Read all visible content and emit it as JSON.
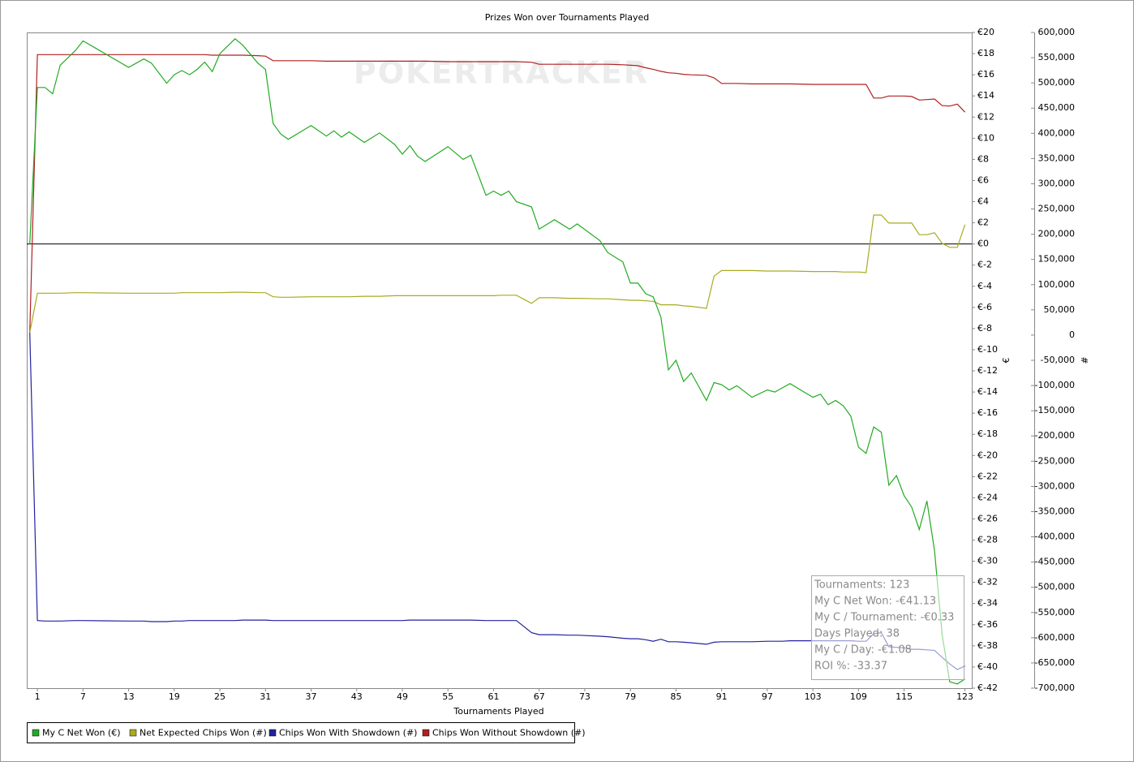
{
  "chart_data": {
    "type": "line",
    "title": "Prizes Won over Tournaments Played",
    "xlabel": "Tournaments Played",
    "ylabel": "€",
    "y2label": "#",
    "watermark": "POKERTRACKER",
    "legend": "bottom-left",
    "zero_line": true,
    "x": [
      0,
      1,
      2,
      3,
      4,
      6,
      7,
      13,
      15,
      16,
      18,
      19,
      20,
      21,
      22,
      23,
      24,
      25,
      27,
      28,
      30,
      31,
      32,
      33,
      34,
      37,
      39,
      40,
      41,
      42,
      44,
      46,
      48,
      49,
      50,
      51,
      52,
      55,
      57,
      58,
      60,
      61,
      62,
      63,
      64,
      66,
      67,
      69,
      71,
      72,
      75,
      76,
      78,
      79,
      80,
      81,
      82,
      83,
      84,
      85,
      86,
      87,
      89,
      90,
      91,
      92,
      93,
      95,
      97,
      98,
      99,
      100,
      103,
      104,
      105,
      106,
      107,
      108,
      109,
      110,
      111,
      112,
      113,
      114,
      115,
      116,
      117,
      118,
      119,
      120,
      121,
      122,
      123
    ],
    "xlim": [
      -0.4,
      123.9
    ],
    "xticks": [
      1,
      7,
      13,
      19,
      25,
      31,
      37,
      43,
      49,
      55,
      61,
      67,
      73,
      79,
      85,
      91,
      97,
      103,
      109,
      115,
      123
    ],
    "ylim": [
      -42,
      20
    ],
    "yticks": [
      {
        "value": 20,
        "label": "€20"
      },
      {
        "value": 18,
        "label": "€18"
      },
      {
        "value": 16,
        "label": "€16"
      },
      {
        "value": 14,
        "label": "€14"
      },
      {
        "value": 12,
        "label": "€12"
      },
      {
        "value": 10,
        "label": "€10"
      },
      {
        "value": 8,
        "label": "€8"
      },
      {
        "value": 6,
        "label": "€6"
      },
      {
        "value": 4,
        "label": "€4"
      },
      {
        "value": 2,
        "label": "€2"
      },
      {
        "value": 0,
        "label": "€0"
      },
      {
        "value": -2,
        "label": "€-2"
      },
      {
        "value": -4,
        "label": "€-4"
      },
      {
        "value": -6,
        "label": "€-6"
      },
      {
        "value": -8,
        "label": "€-8"
      },
      {
        "value": -10,
        "label": "€-10"
      },
      {
        "value": -12,
        "label": "€-12"
      },
      {
        "value": -14,
        "label": "€-14"
      },
      {
        "value": -16,
        "label": "€-16"
      },
      {
        "value": -18,
        "label": "€-18"
      },
      {
        "value": -20,
        "label": "€-20"
      },
      {
        "value": -22,
        "label": "€-22"
      },
      {
        "value": -24,
        "label": "€-24"
      },
      {
        "value": -26,
        "label": "€-26"
      },
      {
        "value": -28,
        "label": "€-28"
      },
      {
        "value": -30,
        "label": "€-30"
      },
      {
        "value": -32,
        "label": "€-32"
      },
      {
        "value": -34,
        "label": "€-34"
      },
      {
        "value": -36,
        "label": "€-36"
      },
      {
        "value": -38,
        "label": "€-38"
      },
      {
        "value": -40,
        "label": "€-40"
      },
      {
        "value": -42,
        "label": "€-42"
      }
    ],
    "y2lim": [
      -700000,
      600000
    ],
    "y2ticks": [
      {
        "value": 600000,
        "label": "600,000"
      },
      {
        "value": 550000,
        "label": "550,000"
      },
      {
        "value": 500000,
        "label": "500,000"
      },
      {
        "value": 450000,
        "label": "450,000"
      },
      {
        "value": 400000,
        "label": "400,000"
      },
      {
        "value": 350000,
        "label": "350,000"
      },
      {
        "value": 300000,
        "label": "300,000"
      },
      {
        "value": 250000,
        "label": "250,000"
      },
      {
        "value": 200000,
        "label": "200,000"
      },
      {
        "value": 150000,
        "label": "150,000"
      },
      {
        "value": 100000,
        "label": "100,000"
      },
      {
        "value": 50000,
        "label": "50,000"
      },
      0,
      {
        "value": -50000,
        "label": "-50,000"
      },
      {
        "value": -100000,
        "label": "-100,000"
      },
      {
        "value": -150000,
        "label": "-150,000"
      },
      {
        "value": -200000,
        "label": "-200,000"
      },
      {
        "value": -250000,
        "label": "-250,000"
      },
      {
        "value": -300000,
        "label": "-300,000"
      },
      {
        "value": -350000,
        "label": "-350,000"
      },
      {
        "value": -400000,
        "label": "-400,000"
      },
      {
        "value": -450000,
        "label": "-450,000"
      },
      {
        "value": -500000,
        "label": "-500,000"
      },
      {
        "value": -550000,
        "label": "-550,000"
      },
      {
        "value": -600000,
        "label": "-600,000"
      },
      {
        "value": -650000,
        "label": "-650,000"
      },
      {
        "value": -700000,
        "label": "-700,000"
      }
    ],
    "series": [
      {
        "name": "My C Net Won (€)",
        "color": "#22aa22",
        "axis": "y",
        "values": [
          0,
          14.8,
          14.8,
          14.2,
          16.9,
          18.3,
          19.2,
          16.7,
          17.5,
          17.1,
          15.2,
          16,
          16.4,
          16,
          16.5,
          17.2,
          16.3,
          18,
          19.4,
          18.8,
          17.1,
          16.5,
          11.4,
          10.4,
          9.9,
          11.2,
          10.2,
          10.7,
          10.1,
          10.6,
          9.6,
          10.5,
          9.4,
          8.5,
          9.3,
          8.3,
          7.8,
          9.2,
          8,
          8.4,
          4.6,
          5,
          4.6,
          5,
          4,
          3.5,
          1.4,
          2.3,
          1.4,
          1.9,
          0.3,
          -0.8,
          -1.7,
          -3.7,
          -3.7,
          -4.7,
          -5,
          -6.9,
          -11.9,
          -11,
          -13,
          -12.2,
          -14.8,
          -13.1,
          -13.3,
          -13.8,
          -13.4,
          -14.5,
          -13.8,
          -14,
          -13.6,
          -13.2,
          -14.5,
          -14.2,
          -15.2,
          -14.8,
          -15.3,
          -16.3,
          -19.2,
          -19.8,
          -17.3,
          -17.8,
          -22.8,
          -21.9,
          -23.8,
          -24.9,
          -27,
          -24.3,
          -29,
          -36.9,
          -41.4,
          -41.6,
          -41.13
        ]
      },
      {
        "name": "Net Expected Chips Won (#)",
        "color": "#aaaa22",
        "axis": "y2",
        "values": [
          5000,
          83000,
          83000,
          83000,
          83000,
          84000,
          84000,
          83000,
          83000,
          83000,
          83000,
          83000,
          84000,
          84000,
          84000,
          84000,
          84000,
          84000,
          85000,
          85000,
          84000,
          84000,
          76000,
          75000,
          75000,
          76000,
          76000,
          76000,
          76000,
          76000,
          77000,
          77000,
          78000,
          78000,
          78000,
          78000,
          78000,
          78000,
          78000,
          78000,
          78000,
          78000,
          79000,
          79000,
          79000,
          63000,
          74000,
          74000,
          73000,
          73000,
          72000,
          72000,
          70000,
          69000,
          69000,
          68000,
          67000,
          60000,
          60000,
          60000,
          58000,
          57000,
          53000,
          117000,
          128000,
          128000,
          128000,
          128000,
          127000,
          127000,
          127000,
          127000,
          126000,
          126000,
          126000,
          126000,
          125000,
          125000,
          125000,
          124000,
          238000,
          238000,
          222000,
          222000,
          222000,
          222000,
          199000,
          199000,
          203000,
          182000,
          174000,
          174000,
          219000
        ]
      },
      {
        "name": "Chips Won With Showdown (#)",
        "color": "#2222a0",
        "axis": "y2",
        "values": [
          5000,
          -566000,
          -567000,
          -567000,
          -567000,
          -566000,
          -566000,
          -567000,
          -567000,
          -568000,
          -568000,
          -567000,
          -567000,
          -566000,
          -566000,
          -566000,
          -566000,
          -566000,
          -566000,
          -565000,
          -565000,
          -565000,
          -566000,
          -566000,
          -566000,
          -566000,
          -566000,
          -566000,
          -566000,
          -566000,
          -566000,
          -566000,
          -566000,
          -566000,
          -565000,
          -565000,
          -565000,
          -565000,
          -565000,
          -565000,
          -566000,
          -566000,
          -566000,
          -566000,
          -566000,
          -590000,
          -594000,
          -594000,
          -595000,
          -595000,
          -597000,
          -598000,
          -601000,
          -602000,
          -602000,
          -604000,
          -607000,
          -603000,
          -608000,
          -608000,
          -609000,
          -610000,
          -613000,
          -609000,
          -608000,
          -608000,
          -608000,
          -608000,
          -607000,
          -607000,
          -607000,
          -606000,
          -606000,
          -606000,
          -606000,
          -606000,
          -606000,
          -606000,
          -607000,
          -607000,
          -592000,
          -590000,
          -618000,
          -619000,
          -620000,
          -623000,
          -623000,
          -624000,
          -625000,
          -639000,
          -652000,
          -663000,
          -656000
        ]
      },
      {
        "name": "Chips Won Without Showdown (#)",
        "color": "#b02020",
        "axis": "y2",
        "values": [
          5000,
          556000,
          556000,
          556000,
          556000,
          556000,
          556000,
          556000,
          556000,
          556000,
          556000,
          556000,
          556000,
          556000,
          556000,
          556000,
          555000,
          555000,
          555000,
          555000,
          554000,
          553000,
          544000,
          544000,
          544000,
          544000,
          543000,
          543000,
          543000,
          543000,
          543000,
          543000,
          543000,
          543000,
          543000,
          543000,
          543000,
          542000,
          542000,
          542000,
          542000,
          542000,
          542000,
          542000,
          542000,
          541000,
          537000,
          537000,
          537000,
          537000,
          537000,
          537000,
          536000,
          535000,
          534000,
          530000,
          527000,
          523000,
          520000,
          519000,
          517000,
          516000,
          515000,
          510000,
          499000,
          499000,
          499000,
          498000,
          498000,
          498000,
          498000,
          498000,
          497000,
          497000,
          497000,
          497000,
          497000,
          497000,
          497000,
          497000,
          470000,
          470000,
          474000,
          474000,
          474000,
          473000,
          466000,
          467000,
          468000,
          455000,
          454000,
          458000,
          442000
        ]
      }
    ],
    "tooltip": [
      "Tournaments: 123",
      "My C Net Won: -€41.13",
      "My C / Tournament: -€0.33",
      "Days Played: 38",
      "My C / Day: -€1.08",
      "ROI %: -33.37"
    ]
  }
}
